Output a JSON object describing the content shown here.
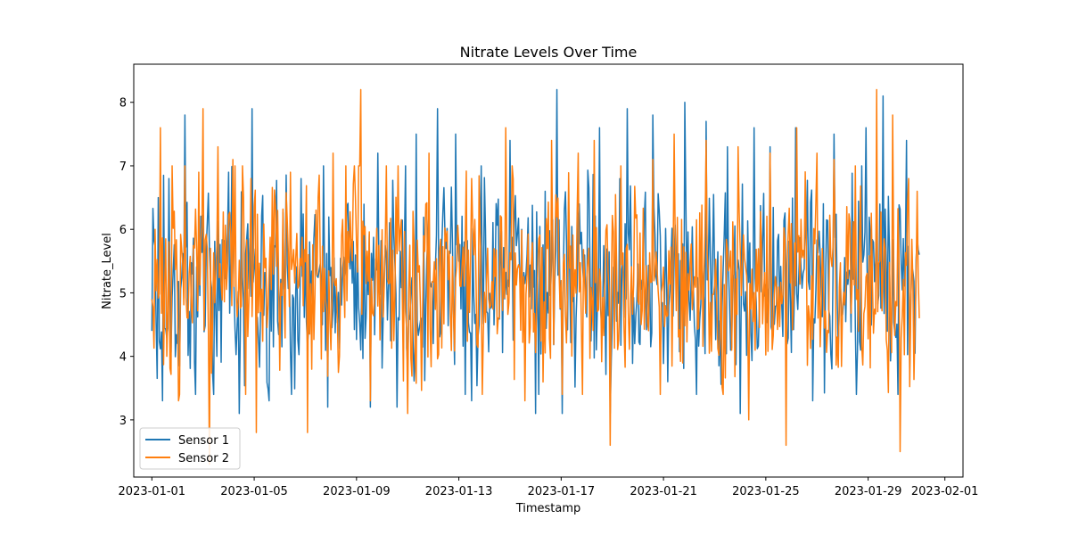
{
  "chart_data": {
    "type": "line",
    "title": "Nitrate Levels Over Time",
    "xlabel": "Timestamp",
    "ylabel": "Nitrate_Level",
    "x_start": "2023-01-01T00:00",
    "x_end": "2023-01-31T00:00",
    "sampling": "hourly",
    "xlim": [
      "2022-12-31T07:00",
      "2023-02-01T17:00"
    ],
    "ylim": [
      2.1,
      8.6
    ],
    "xticks": [
      "2023-01-01",
      "2023-01-05",
      "2023-01-09",
      "2023-01-13",
      "2023-01-17",
      "2023-01-21",
      "2023-01-25",
      "2023-01-29",
      "2023-02-01"
    ],
    "yticks": [
      3,
      4,
      5,
      6,
      7,
      8
    ],
    "grid": false,
    "legend_position": "lower left",
    "series": [
      {
        "name": "Sensor 1",
        "color": "#1f77b4",
        "anchors": [
          [
            0,
            4.4
          ],
          [
            6,
            6.5
          ],
          [
            10,
            3.3
          ],
          [
            16,
            6.8
          ],
          [
            24,
            4.2
          ],
          [
            31,
            7.8
          ],
          [
            40,
            3.9
          ],
          [
            52,
            6.1
          ],
          [
            58,
            3.4
          ],
          [
            72,
            6.9
          ],
          [
            82,
            3.1
          ],
          [
            94,
            7.9
          ],
          [
            110,
            3.3
          ],
          [
            140,
            6.8
          ],
          [
            165,
            3.2
          ],
          [
            196,
            4.1
          ],
          [
            205,
            3.2
          ],
          [
            212,
            7.2
          ],
          [
            230,
            3.2
          ],
          [
            248,
            7.5
          ],
          [
            268,
            7.9
          ],
          [
            285,
            7.5
          ],
          [
            300,
            3.3
          ],
          [
            336,
            7.4
          ],
          [
            360,
            3.1
          ],
          [
            380,
            8.2
          ],
          [
            385,
            3.1
          ],
          [
            420,
            7.6
          ],
          [
            430,
            3.1
          ],
          [
            446,
            7.9
          ],
          [
            470,
            7.8
          ],
          [
            484,
            3.6
          ],
          [
            500,
            8.0
          ],
          [
            520,
            7.7
          ],
          [
            540,
            7.3
          ],
          [
            552,
            3.1
          ],
          [
            565,
            7.6
          ],
          [
            580,
            7.3
          ],
          [
            604,
            7.6
          ],
          [
            620,
            3.3
          ],
          [
            640,
            7.5
          ],
          [
            670,
            7.6
          ],
          [
            686,
            8.1
          ],
          [
            700,
            3.4
          ],
          [
            708,
            7.4
          ],
          [
            720,
            5.6
          ]
        ]
      },
      {
        "name": "Sensor 2",
        "color": "#ff7f0e",
        "anchors": [
          [
            0,
            4.9
          ],
          [
            3,
            6.0
          ],
          [
            8,
            7.6
          ],
          [
            14,
            4.0
          ],
          [
            19,
            7.0
          ],
          [
            25,
            3.3
          ],
          [
            34,
            4.6
          ],
          [
            44,
            6.9
          ],
          [
            48,
            7.9
          ],
          [
            54,
            2.3
          ],
          [
            62,
            7.3
          ],
          [
            76,
            7.1
          ],
          [
            85,
            7.0
          ],
          [
            93,
            6.8
          ],
          [
            98,
            2.8
          ],
          [
            130,
            6.9
          ],
          [
            146,
            2.8
          ],
          [
            156,
            6.5
          ],
          [
            170,
            7.2
          ],
          [
            190,
            7.0
          ],
          [
            196,
            8.2
          ],
          [
            205,
            3.3
          ],
          [
            220,
            7.0
          ],
          [
            240,
            3.1
          ],
          [
            260,
            7.2
          ],
          [
            300,
            6.8
          ],
          [
            310,
            3.4
          ],
          [
            332,
            7.6
          ],
          [
            350,
            3.3
          ],
          [
            375,
            7.4
          ],
          [
            385,
            3.4
          ],
          [
            400,
            7.2
          ],
          [
            415,
            7.4
          ],
          [
            430,
            2.6
          ],
          [
            440,
            7.0
          ],
          [
            470,
            7.1
          ],
          [
            490,
            7.5
          ],
          [
            520,
            7.4
          ],
          [
            550,
            7.3
          ],
          [
            560,
            3.0
          ],
          [
            580,
            7.2
          ],
          [
            595,
            2.6
          ],
          [
            605,
            7.6
          ],
          [
            624,
            7.2
          ],
          [
            640,
            7.1
          ],
          [
            660,
            7.0
          ],
          [
            680,
            8.2
          ],
          [
            690,
            4.1
          ],
          [
            695,
            7.8
          ],
          [
            702,
            2.5
          ],
          [
            710,
            6.8
          ],
          [
            718,
            6.6
          ],
          [
            720,
            4.6
          ]
        ]
      }
    ]
  }
}
